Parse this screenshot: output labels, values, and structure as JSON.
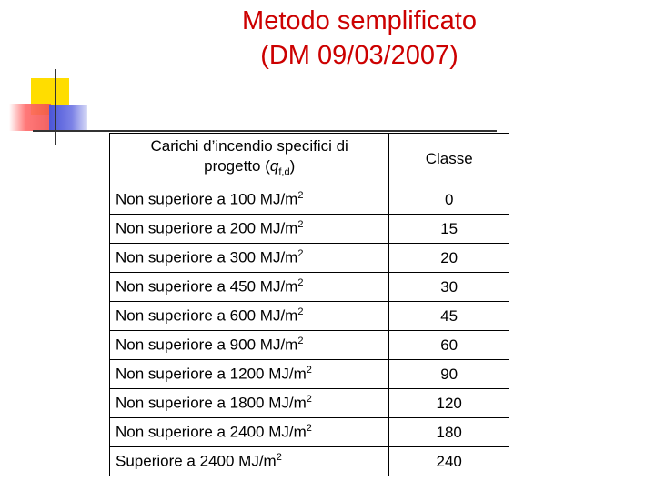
{
  "title": {
    "line1": "Metodo semplificato",
    "line2": "(DM 09/03/2007)"
  },
  "table": {
    "header": {
      "col1_line1": "Carichi d’incendio specifici di",
      "col1_line2_prefix": "progetto (",
      "col1_q": "q",
      "col1_sub": "f,d",
      "col1_line2_suffix": ")",
      "col2": "Classe"
    },
    "unit_base": "MJ/m",
    "unit_exp": "2",
    "rows": [
      {
        "label": "Non superiore a 100",
        "classe": "0"
      },
      {
        "label": "Non superiore a 200",
        "classe": "15"
      },
      {
        "label": "Non superiore a 300",
        "classe": "20"
      },
      {
        "label": "Non superiore a 450",
        "classe": "30"
      },
      {
        "label": "Non superiore a 600",
        "classe": "45"
      },
      {
        "label": "Non superiore a 900",
        "classe": "60"
      },
      {
        "label": "Non superiore a 1200",
        "classe": "90"
      },
      {
        "label": "Non superiore a 1800",
        "classe": "120"
      },
      {
        "label": "Non superiore a 2400",
        "classe": "180"
      },
      {
        "label": "Superiore a 2400",
        "classe": "240"
      }
    ]
  }
}
